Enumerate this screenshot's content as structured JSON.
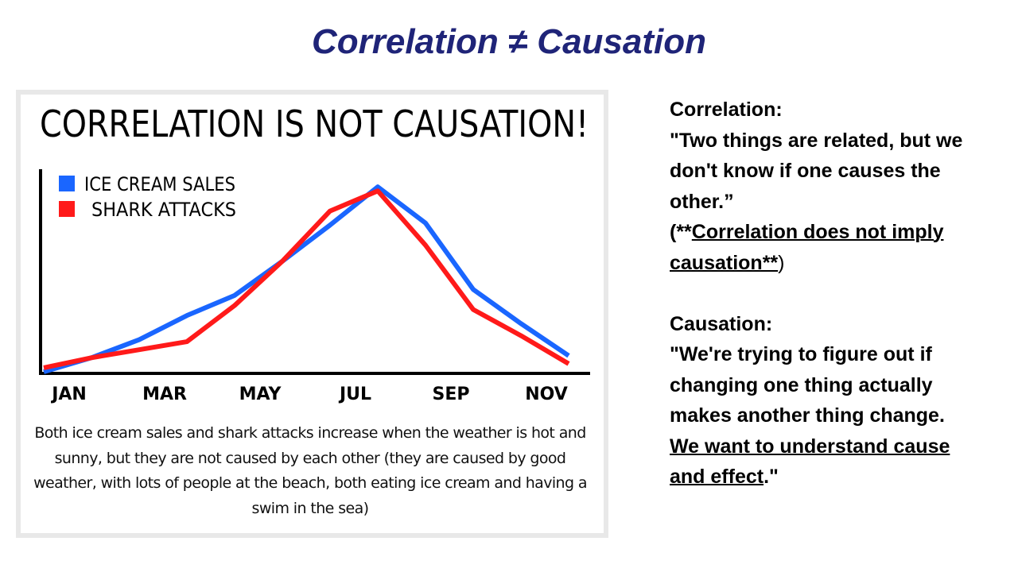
{
  "title": "Correlation ≠ Causation",
  "chart_data": {
    "type": "line",
    "title": "CORRELATION IS NOT CAUSATION!",
    "categories": [
      "JAN",
      null,
      "MAR",
      null,
      "MAY",
      null,
      "JUL",
      null,
      "SEP",
      null,
      "NOV",
      null
    ],
    "series": [
      {
        "name": "ICE CREAM SALES",
        "color": "#1a66ff",
        "values": [
          0,
          7,
          16,
          28,
          38,
          55,
          73,
          92,
          74,
          41,
          24,
          8
        ]
      },
      {
        "name": "SHARK ATTACKS",
        "color": "#ff1a1a",
        "values": [
          2,
          7,
          11,
          15,
          33,
          55,
          80,
          90,
          63,
          31,
          18,
          4
        ]
      }
    ],
    "ylim": [
      0,
      100
    ],
    "caption": "Both ice cream sales and shark attacks increase when the weather is hot and sunny, but they are not caused by each other (they are caused by good weather, with lots of people at the beach, both eating ice cream and having a swim in the sea)"
  },
  "notes": {
    "correlation": {
      "label": "Correlation:",
      "quote": "\"Two things are related, but we don't know if one causes the other.”",
      "open": "(**",
      "underlined": "Correlation does not imply causation**",
      "close": ")"
    },
    "causation": {
      "label": "Causation:",
      "quote": " \"We're trying to figure out if changing one thing actually makes another thing change. ",
      "underlined": "We want to understand cause and effect",
      "close": ".\""
    }
  }
}
